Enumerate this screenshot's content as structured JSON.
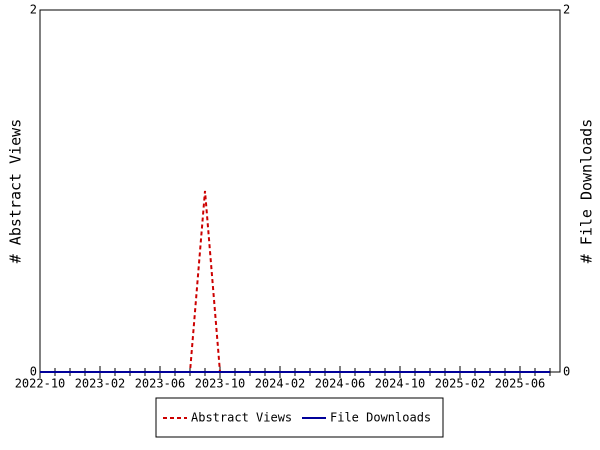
{
  "chart_data": {
    "type": "line",
    "categories": [
      "2022-10",
      null,
      null,
      null,
      "2023-02",
      null,
      null,
      null,
      "2023-06",
      null,
      null,
      null,
      "2023-10",
      null,
      null,
      null,
      "2024-02",
      null,
      null,
      null,
      "2024-06",
      null,
      null,
      null,
      "2024-10",
      null,
      null,
      null,
      "2025-02",
      null,
      null,
      null,
      "2025-06",
      null,
      null
    ],
    "y_label": "# Abstract Views",
    "y2_label": "# File Downloads",
    "ylim": [
      0,
      2
    ],
    "yticks": [
      0,
      2
    ],
    "y2lim": [
      0,
      2
    ],
    "y2ticks": [
      0,
      2
    ],
    "legend": "bottom",
    "series": [
      {
        "name": "Abstract Views",
        "color": "#cc0000",
        "dashed": true,
        "values": [
          0,
          0,
          0,
          0,
          0,
          0,
          0,
          0,
          0,
          0,
          0,
          1,
          0,
          0,
          0,
          0,
          0,
          0,
          0,
          0,
          0,
          0,
          0,
          0,
          0,
          0,
          0,
          0,
          0,
          0,
          0,
          0,
          0,
          0,
          0
        ]
      },
      {
        "name": "File Downloads",
        "color": "#000099",
        "axis": "y2",
        "values": [
          0,
          0,
          0,
          0,
          0,
          0,
          0,
          0,
          0,
          0,
          0,
          0,
          0,
          0,
          0,
          0,
          0,
          0,
          0,
          0,
          0,
          0,
          0,
          0,
          0,
          0,
          0,
          0,
          0,
          0,
          0,
          0,
          0,
          0,
          0
        ]
      }
    ]
  }
}
